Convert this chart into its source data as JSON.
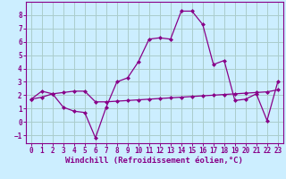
{
  "xlabel": "Windchill (Refroidissement éolien,°C)",
  "background_color": "#cceeff",
  "grid_color": "#aacccc",
  "line_color": "#880088",
  "xlim": [
    -0.5,
    23.5
  ],
  "ylim": [
    -1.6,
    9.0
  ],
  "xticks": [
    0,
    1,
    2,
    3,
    4,
    5,
    6,
    7,
    8,
    9,
    10,
    11,
    12,
    13,
    14,
    15,
    16,
    17,
    18,
    19,
    20,
    21,
    22,
    23
  ],
  "yticks": [
    -1,
    0,
    1,
    2,
    3,
    4,
    5,
    6,
    7,
    8
  ],
  "curve1_x": [
    0,
    1,
    2,
    3,
    4,
    5,
    6,
    7,
    8,
    9,
    10,
    11,
    12,
    13,
    14,
    15,
    16,
    17,
    18,
    19,
    20,
    21,
    22,
    23
  ],
  "curve1_y": [
    1.7,
    2.3,
    2.1,
    1.1,
    0.8,
    0.7,
    -1.2,
    1.1,
    3.0,
    3.3,
    4.5,
    6.2,
    6.3,
    6.2,
    8.3,
    8.3,
    7.3,
    4.3,
    4.6,
    1.6,
    1.7,
    2.1,
    0.1,
    3.0
  ],
  "curve2_x": [
    0,
    1,
    2,
    3,
    4,
    5,
    6,
    7,
    8,
    9,
    10,
    11,
    12,
    13,
    14,
    15,
    16,
    17,
    18,
    19,
    20,
    21,
    22,
    23
  ],
  "curve2_y": [
    1.7,
    1.85,
    2.1,
    2.2,
    2.3,
    2.3,
    1.5,
    1.5,
    1.55,
    1.6,
    1.65,
    1.7,
    1.75,
    1.8,
    1.85,
    1.9,
    1.95,
    2.0,
    2.05,
    2.1,
    2.15,
    2.2,
    2.25,
    2.4
  ],
  "tick_fontsize": 5.5,
  "xlabel_fontsize": 6.5
}
